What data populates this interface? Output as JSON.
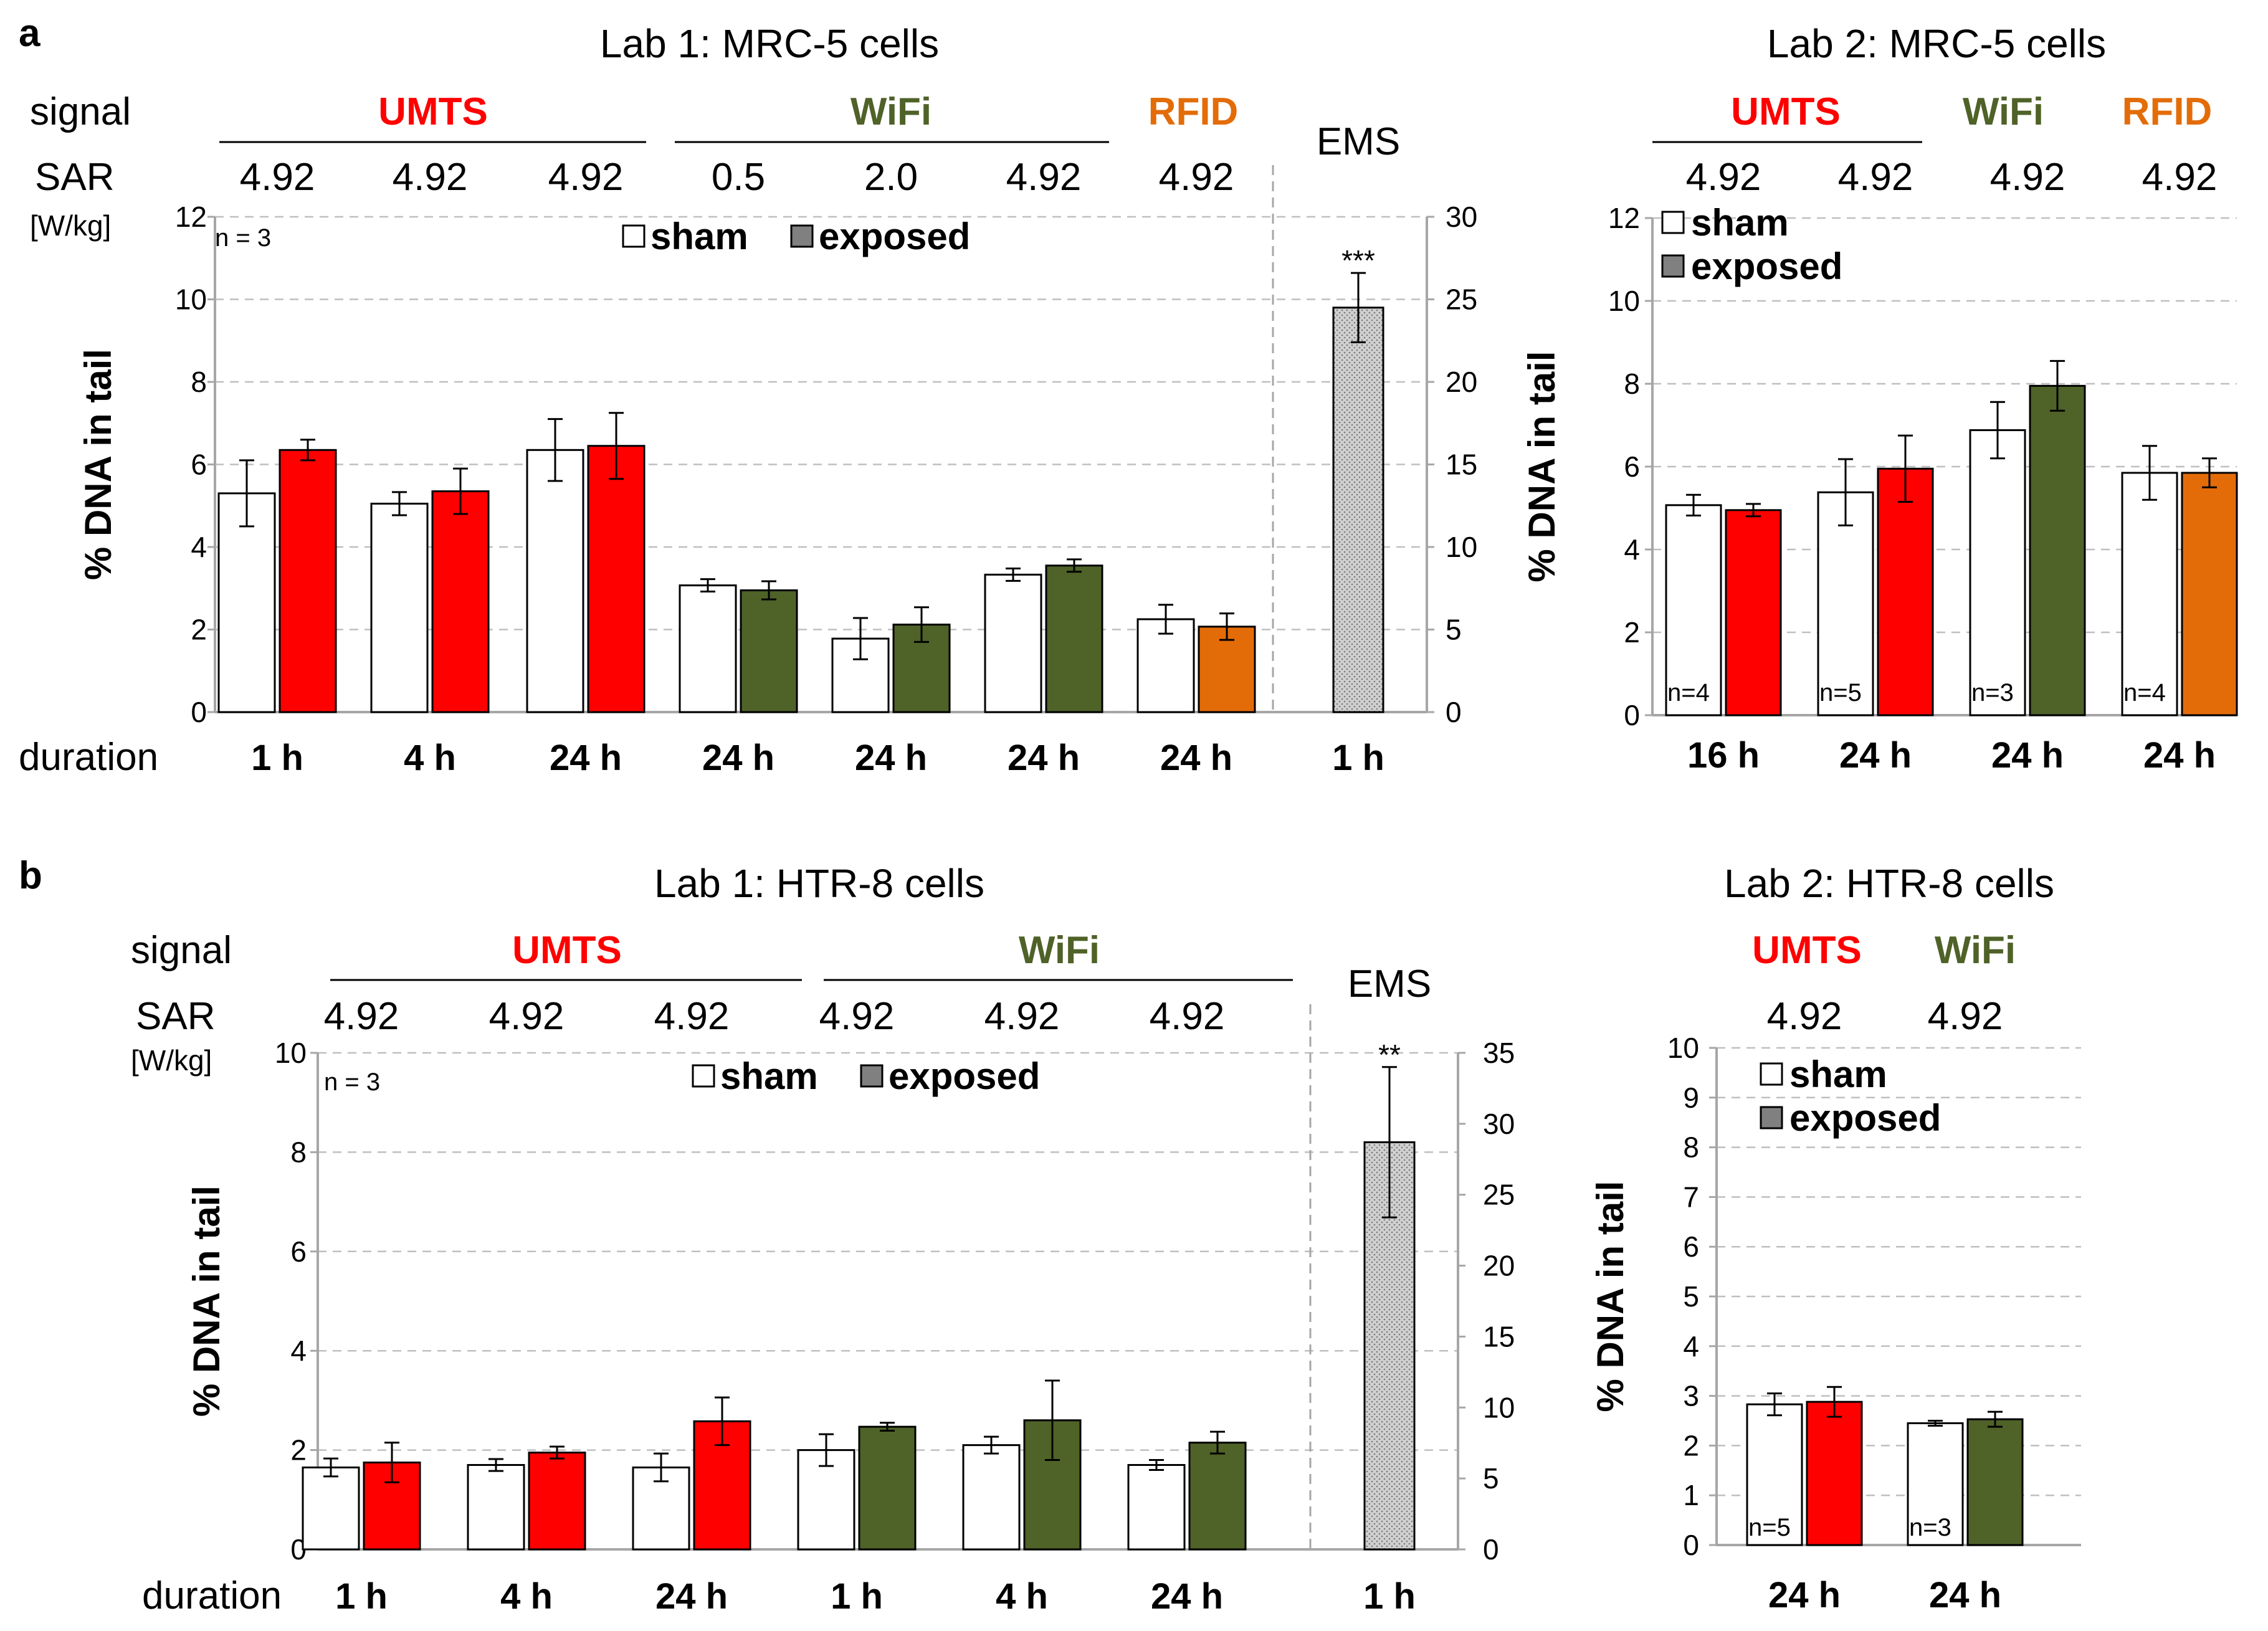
{
  "colors": {
    "umts": "#ff0000",
    "wifi": "#4f6228",
    "rfid": "#e36c09",
    "sham": "#ffffff",
    "ems": "#c8c8c8",
    "axis": "#a6a6a6",
    "grid": "#bfbfbf",
    "text": "#000000"
  },
  "row_labels": {
    "signal": "signal",
    "sar": "SAR",
    "sar_unit": "[W/kg]",
    "duration": "duration",
    "ylabel": "% DNA in tail"
  },
  "chart_data": [
    {
      "panel": "a",
      "title": "Lab 1: MRC-5 cells",
      "type": "bar",
      "ylabel": "% DNA in tail",
      "ylim": [
        0,
        12
      ],
      "yticks": [
        0,
        2,
        4,
        6,
        8,
        10,
        12
      ],
      "y2lim": [
        0,
        30
      ],
      "y2ticks": [
        0,
        5,
        10,
        15,
        20,
        25,
        30
      ],
      "grid": true,
      "n_note": "n = 3",
      "legend": {
        "items": [
          "sham",
          "exposed"
        ],
        "placement": "top-center"
      },
      "signal_groups": [
        {
          "label": "UMTS",
          "color_key": "umts"
        },
        {
          "label": "WiFi",
          "color_key": "wifi"
        },
        {
          "label": "RFID",
          "color_key": "rfid"
        }
      ],
      "ems_label": "EMS",
      "sar_values": [
        "4.92",
        "4.92",
        "4.92",
        "0.5",
        "2.0",
        "4.92",
        "4.92"
      ],
      "categories": [
        "1 h",
        "4 h",
        "24 h",
        "24 h",
        "24 h",
        "24 h",
        "24 h",
        "1 h"
      ],
      "series": [
        {
          "name": "sham",
          "values": [
            5.3,
            5.05,
            6.35,
            3.07,
            1.78,
            3.33,
            2.25,
            null
          ],
          "errors": [
            0.8,
            0.28,
            0.75,
            0.15,
            0.5,
            0.15,
            0.35,
            null
          ]
        },
        {
          "name": "exposed",
          "values": [
            6.35,
            5.35,
            6.45,
            2.95,
            2.12,
            3.55,
            2.07,
            null
          ],
          "errors": [
            0.25,
            0.55,
            0.8,
            0.22,
            0.42,
            0.15,
            0.32,
            null
          ],
          "colors": [
            "umts",
            "umts",
            "umts",
            "wifi",
            "wifi",
            "wifi",
            "rfid",
            null
          ]
        }
      ],
      "ems": {
        "value": 24.5,
        "error": 2.1,
        "axis": "secondary",
        "significance": "***"
      }
    },
    {
      "panel": "a",
      "title": "Lab 2: MRC-5 cells",
      "type": "bar",
      "ylabel": "% DNA in tail",
      "ylim": [
        0,
        12
      ],
      "yticks": [
        0,
        2,
        4,
        6,
        8,
        10,
        12
      ],
      "grid": true,
      "legend": {
        "items": [
          "sham",
          "exposed"
        ],
        "placement": "top-left"
      },
      "signal_groups": [
        {
          "label": "UMTS",
          "color_key": "umts"
        },
        {
          "label": "WiFi",
          "color_key": "wifi"
        },
        {
          "label": "RFID",
          "color_key": "rfid"
        }
      ],
      "sar_values": [
        "4.92",
        "4.92",
        "4.92",
        "4.92"
      ],
      "n_labels": [
        "n=4",
        "n=5",
        "n=3",
        "n=4"
      ],
      "categories": [
        "16 h",
        "24 h",
        "24 h",
        "24 h"
      ],
      "series": [
        {
          "name": "sham",
          "values": [
            5.07,
            5.38,
            6.88,
            5.85
          ],
          "errors": [
            0.25,
            0.8,
            0.68,
            0.65
          ]
        },
        {
          "name": "exposed",
          "values": [
            4.95,
            5.95,
            7.95,
            5.85
          ],
          "errors": [
            0.15,
            0.8,
            0.6,
            0.35
          ],
          "colors": [
            "umts",
            "umts",
            "wifi",
            "rfid"
          ]
        }
      ]
    },
    {
      "panel": "b",
      "title": "Lab 1: HTR-8 cells",
      "type": "bar",
      "ylabel": "% DNA in tail",
      "ylim": [
        0,
        10
      ],
      "yticks": [
        0,
        2,
        4,
        6,
        8,
        10
      ],
      "y2lim": [
        0,
        35
      ],
      "y2ticks": [
        0,
        5,
        10,
        15,
        20,
        25,
        30,
        35
      ],
      "grid": true,
      "n_note": "n = 3",
      "legend": {
        "items": [
          "sham",
          "exposed"
        ],
        "placement": "top-center"
      },
      "signal_groups": [
        {
          "label": "UMTS",
          "color_key": "umts"
        },
        {
          "label": "WiFi",
          "color_key": "wifi"
        }
      ],
      "ems_label": "EMS",
      "sar_values": [
        "4.92",
        "4.92",
        "4.92",
        "4.92",
        "4.92",
        "4.92"
      ],
      "categories": [
        "1 h",
        "4 h",
        "24 h",
        "1 h",
        "4 h",
        "24 h",
        "1 h"
      ],
      "series": [
        {
          "name": "sham",
          "values": [
            1.65,
            1.7,
            1.65,
            2.0,
            2.1,
            1.7,
            null
          ],
          "errors": [
            0.18,
            0.12,
            0.28,
            0.32,
            0.17,
            0.1,
            null
          ]
        },
        {
          "name": "exposed",
          "values": [
            1.75,
            1.95,
            2.58,
            2.47,
            2.6,
            2.15,
            null
          ],
          "errors": [
            0.4,
            0.12,
            0.48,
            0.08,
            0.8,
            0.22,
            null
          ],
          "colors": [
            "umts",
            "umts",
            "umts",
            "wifi",
            "wifi",
            "wifi",
            null
          ]
        }
      ],
      "ems": {
        "value": 28.7,
        "error": 5.3,
        "axis": "secondary",
        "significance": "**"
      }
    },
    {
      "panel": "b",
      "title": "Lab 2: HTR-8 cells",
      "type": "bar",
      "ylabel": "% DNA in tail",
      "ylim": [
        0,
        10
      ],
      "yticks": [
        0,
        1,
        2,
        3,
        4,
        5,
        6,
        7,
        8,
        9,
        10
      ],
      "grid": true,
      "legend": {
        "items": [
          "sham",
          "exposed"
        ],
        "placement": "top-left"
      },
      "signal_groups": [
        {
          "label": "UMTS",
          "color_key": "umts"
        },
        {
          "label": "WiFi",
          "color_key": "wifi"
        }
      ],
      "sar_values": [
        "4.92",
        "4.92"
      ],
      "n_labels": [
        "n=5",
        "n=3"
      ],
      "categories": [
        "24 h",
        "24 h"
      ],
      "series": [
        {
          "name": "sham",
          "values": [
            2.83,
            2.45
          ],
          "errors": [
            0.22,
            0.05
          ]
        },
        {
          "name": "exposed",
          "values": [
            2.88,
            2.53
          ],
          "errors": [
            0.3,
            0.15
          ],
          "colors": [
            "umts",
            "wifi"
          ]
        }
      ]
    }
  ]
}
